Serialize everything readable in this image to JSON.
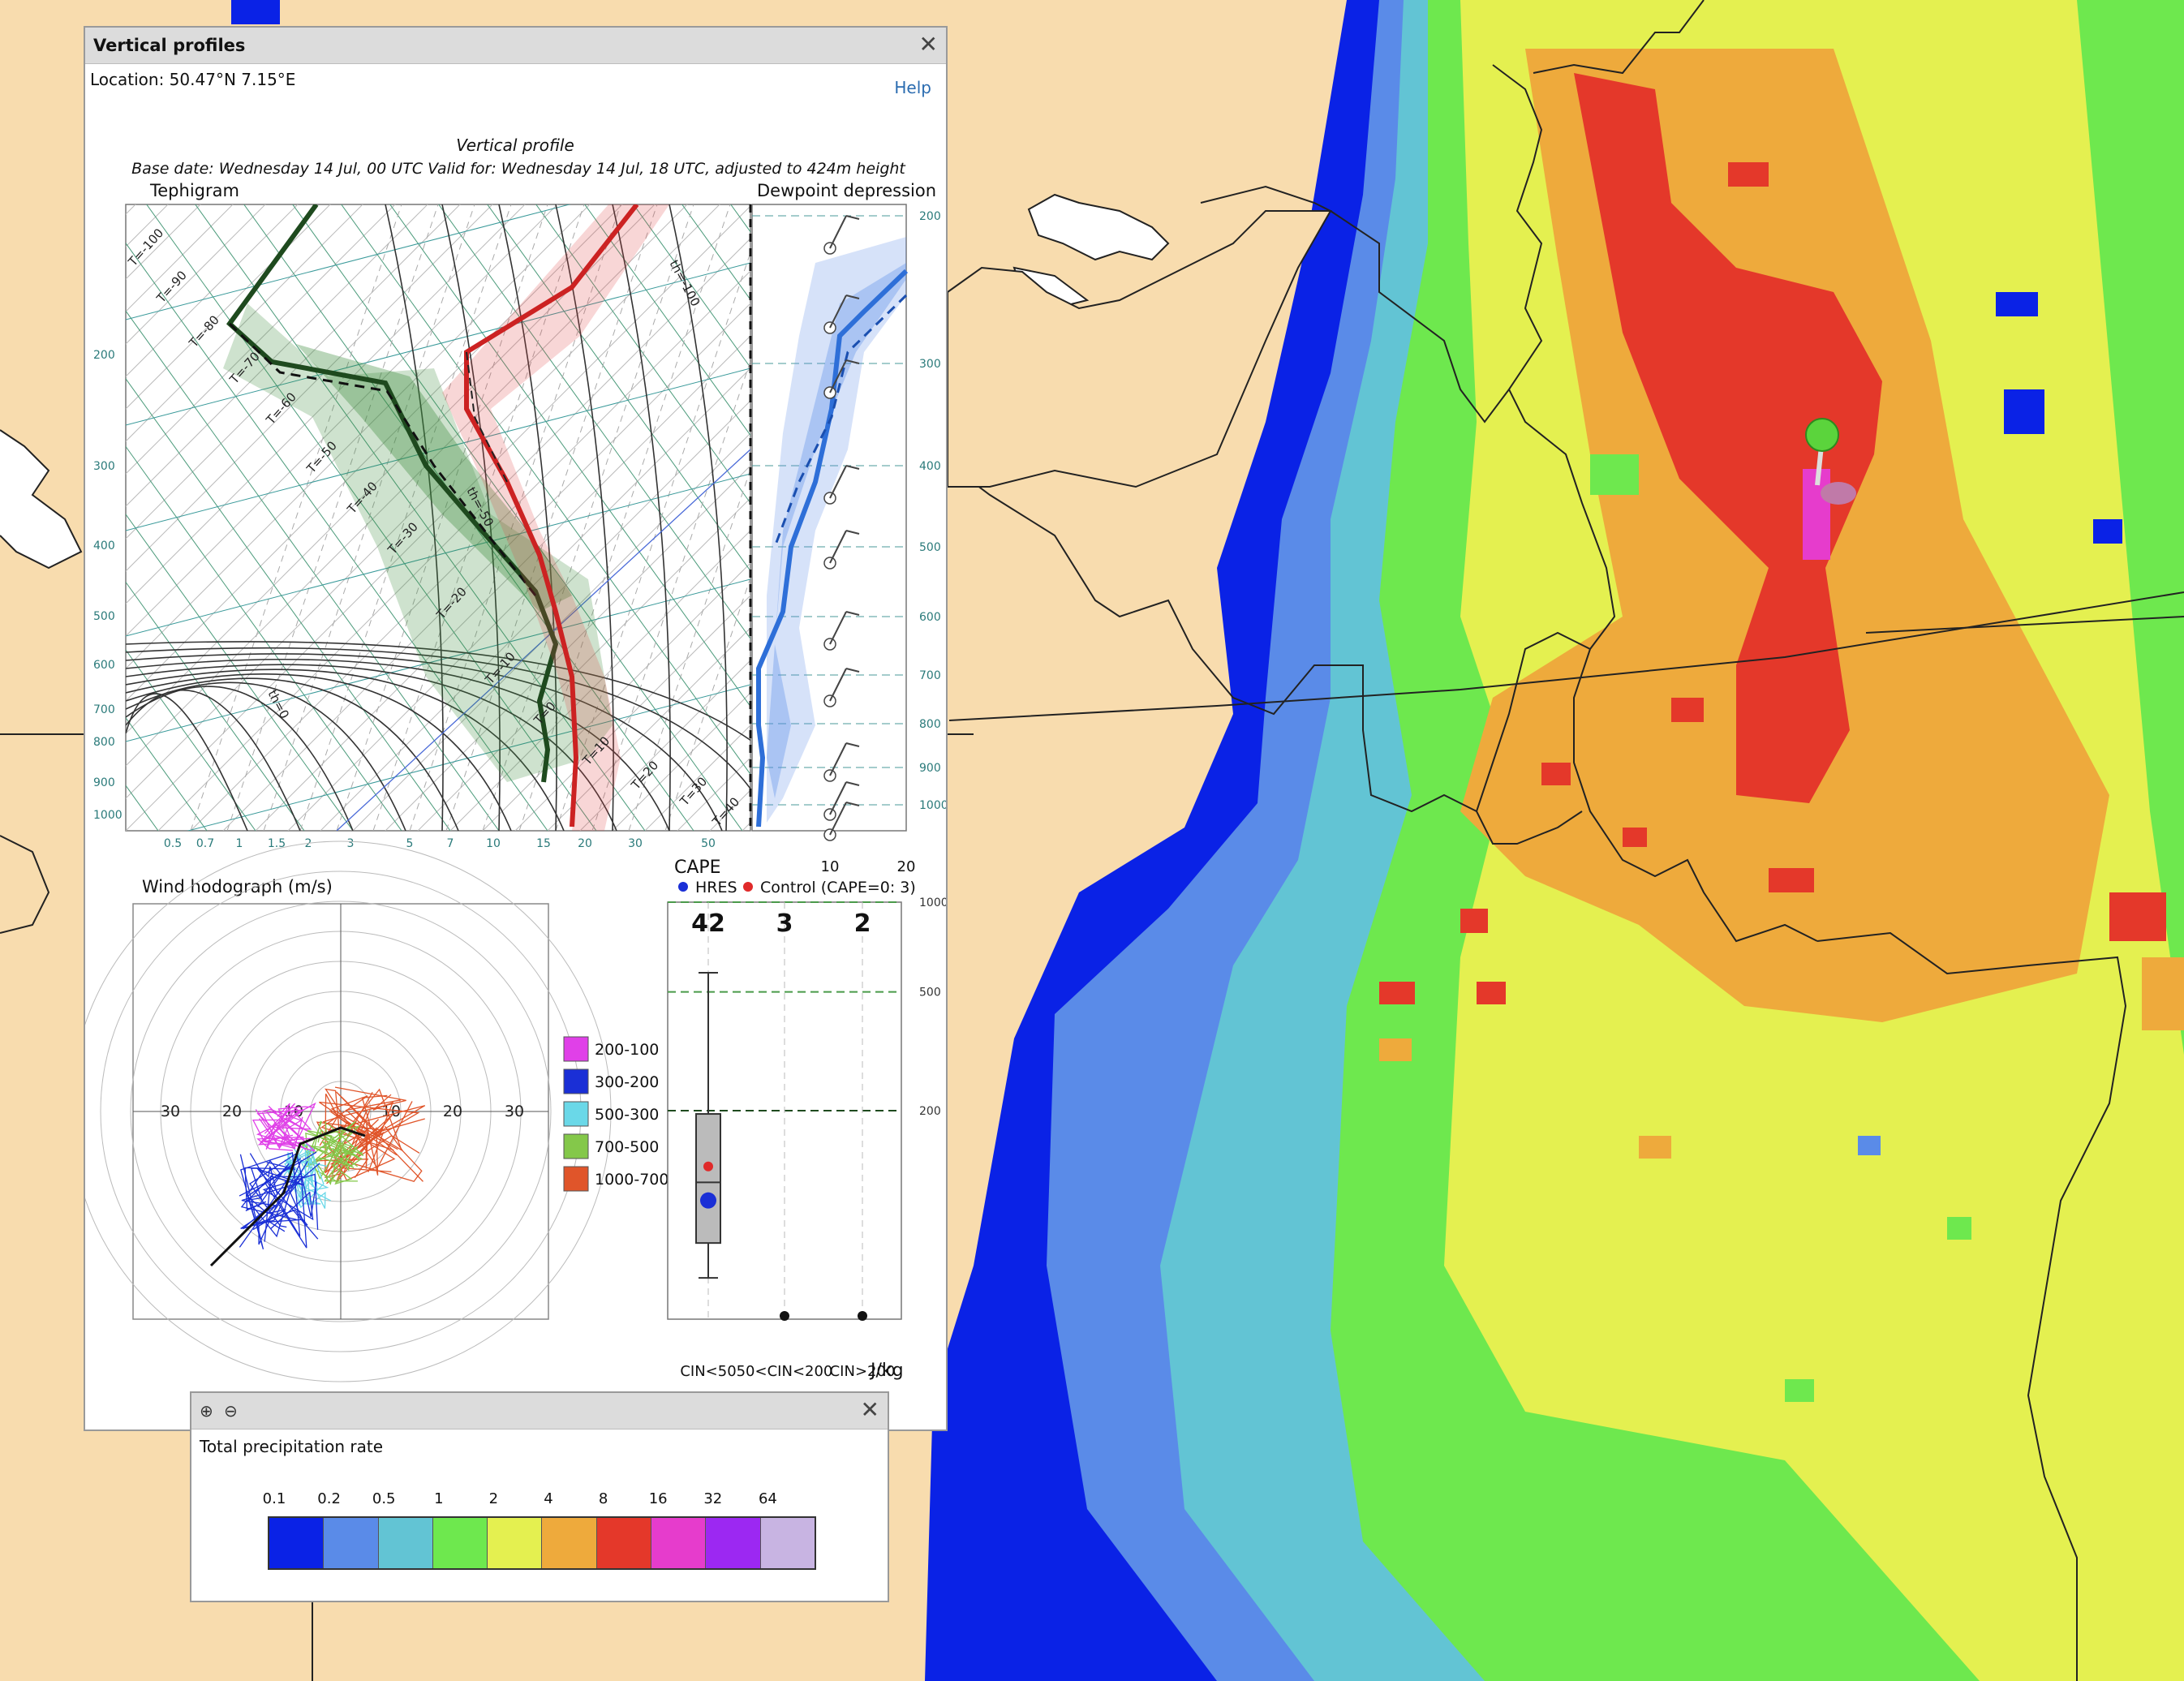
{
  "vp": {
    "title": "Vertical profiles",
    "location": "Location: 50.47°N 7.15°E",
    "help": "Help",
    "close": "✕",
    "chart_title": "Vertical profile",
    "chart_subtitle": "Base date: Wednesday 14 Jul, 00 UTC Valid for: Wednesday 14 Jul, 18 UTC, adjusted to 424m height",
    "tephigram_label": "Tephigram",
    "dewpoint_label": "Dewpoint depression",
    "hodograph_title": "Wind hodograph (m/s)",
    "cape_title": "CAPE",
    "cape_legend_hres": "HRES",
    "cape_legend_control": "Control (CAPE=0: 3)",
    "jkg": "J/kg"
  },
  "chart_data": [
    {
      "type": "line",
      "pressure_labels": [
        "200",
        "300",
        "400",
        "500",
        "600",
        "700",
        "800",
        "900",
        "1000"
      ],
      "right_pressure_labels": [
        "200",
        "300",
        "400",
        "500",
        "600",
        "700",
        "800",
        "900",
        "1000"
      ],
      "x_tick_labels": [
        "0.5",
        "0.7",
        "1",
        "1.5",
        "2",
        "3",
        "5",
        "7",
        "10",
        "15",
        "20",
        "30",
        "50"
      ],
      "dewpoint_tick_labels": [
        "10",
        "20"
      ],
      "isotherm_labels": [
        "T=-100",
        "T=-90",
        "T=-80",
        "T=-70",
        "T=-60",
        "T=-50",
        "T=-40",
        "T=-30",
        "T=-20",
        "T=-10",
        "T=0",
        "T=10",
        "T=20",
        "T=30",
        "T=40"
      ],
      "theta_labels": [
        "th=-100",
        "th=-50",
        "th=0"
      ],
      "series": [
        {
          "name": "temperature",
          "color": "#cc2222"
        },
        {
          "name": "dewpoint",
          "color": "#2a7a2a"
        },
        {
          "name": "dewpoint depression",
          "color": "#2e6fd8"
        }
      ]
    },
    {
      "type": "scatter",
      "axis_labels": [
        "30",
        "20",
        "10",
        "10",
        "20",
        "30"
      ],
      "legend": [
        {
          "label": "200-100",
          "color": "#e040e8"
        },
        {
          "label": "300-200",
          "color": "#1a2fd6"
        },
        {
          "label": "500-300",
          "color": "#6ad8e8"
        },
        {
          "label": "700-500",
          "color": "#84c84a"
        },
        {
          "label": "1000-700",
          "color": "#e0552a"
        }
      ]
    },
    {
      "type": "bar",
      "categories": [
        "CIN<50",
        "50<CIN<200",
        "CIN>200"
      ],
      "counts": [
        "42",
        "3",
        "2"
      ],
      "y_tick_labels": [
        "1000",
        "500",
        "200"
      ],
      "box_cin50": {
        "whisker_high": 580,
        "q3": 195,
        "median": 115,
        "q1": 72,
        "whisker_low": 55,
        "hres": 100,
        "control": 130
      }
    }
  ],
  "legend_panel": {
    "title": "Total precipitation rate",
    "close": "✕",
    "zoom_in": "⊕",
    "zoom_out": "⊖",
    "ticks": [
      "0.1",
      "0.2",
      "0.5",
      "1",
      "2",
      "4",
      "8",
      "16",
      "32",
      "64"
    ],
    "colors": [
      "#0a22e6",
      "#5a8be8",
      "#62c4d4",
      "#6ee84e",
      "#e4f050",
      "#eeaa3c",
      "#e4382a",
      "#e63ccc",
      "#9c28f2",
      "#c8b4e2"
    ]
  }
}
